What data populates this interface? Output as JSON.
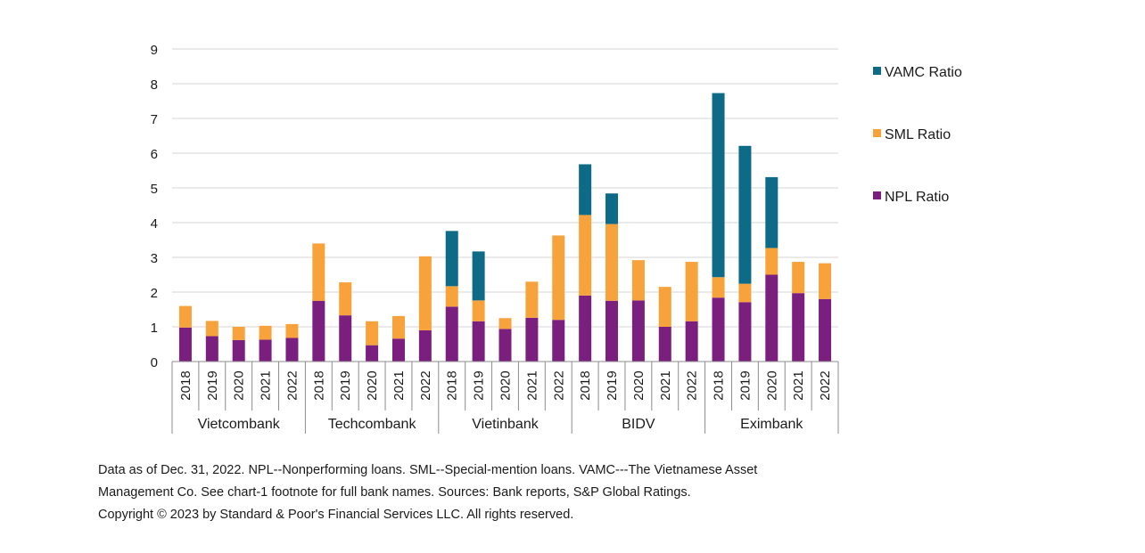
{
  "chart_data": {
    "type": "bar",
    "stacked": true,
    "groups": [
      {
        "name": "Vietcombank",
        "categories": [
          "2018",
          "2019",
          "2020",
          "2021",
          "2022"
        ]
      },
      {
        "name": "Techcombank",
        "categories": [
          "2018",
          "2019",
          "2020",
          "2021",
          "2022"
        ]
      },
      {
        "name": "Vietinbank",
        "categories": [
          "2018",
          "2019",
          "2020",
          "2021",
          "2022"
        ]
      },
      {
        "name": "BIDV",
        "categories": [
          "2018",
          "2019",
          "2020",
          "2021",
          "2022"
        ]
      },
      {
        "name": "Eximbank",
        "categories": [
          "2018",
          "2019",
          "2020",
          "2021",
          "2022"
        ]
      }
    ],
    "series": [
      {
        "name": "NPL Ratio",
        "color": "#7b1f7e",
        "values": [
          0.98,
          0.73,
          0.62,
          0.63,
          0.68,
          1.75,
          1.33,
          0.47,
          0.66,
          0.9,
          1.58,
          1.16,
          0.94,
          1.26,
          1.2,
          1.9,
          1.75,
          1.76,
          1.0,
          1.16,
          1.84,
          1.71,
          2.5,
          1.97,
          1.8
        ]
      },
      {
        "name": "SML Ratio",
        "color": "#f7a23b",
        "values": [
          0.62,
          0.44,
          0.38,
          0.4,
          0.4,
          1.65,
          0.95,
          0.69,
          0.65,
          2.13,
          0.59,
          0.6,
          0.31,
          1.04,
          2.43,
          2.32,
          2.21,
          1.16,
          1.15,
          1.71,
          0.59,
          0.53,
          0.77,
          0.9,
          1.03
        ]
      },
      {
        "name": "VAMC Ratio",
        "color": "#0d6b87",
        "values": [
          0,
          0,
          0,
          0,
          0,
          0,
          0,
          0,
          0,
          0,
          1.59,
          1.41,
          0,
          0,
          0,
          1.46,
          0.88,
          0,
          0,
          0,
          5.3,
          3.97,
          2.04,
          0,
          0
        ]
      }
    ],
    "y_ticks": [
      "0",
      "1",
      "2",
      "3",
      "4",
      "5",
      "6",
      "7",
      "8",
      "9"
    ],
    "ylim": [
      0,
      9
    ],
    "grid": true,
    "legend": {
      "placement": "right",
      "order": [
        "VAMC Ratio",
        "SML Ratio",
        "NPL Ratio"
      ]
    }
  },
  "footnote": {
    "lines": [
      "Data as of Dec. 31, 2022. NPL--Nonperforming loans. SML--Special-mention loans. VAMC---The Vietnamese Asset",
      "Management Co. See chart-1 footnote for full bank names. Sources: Bank reports, S&P Global Ratings.",
      "Copyright © 2023 by Standard & Poor's Financial Services LLC. All rights reserved."
    ]
  }
}
